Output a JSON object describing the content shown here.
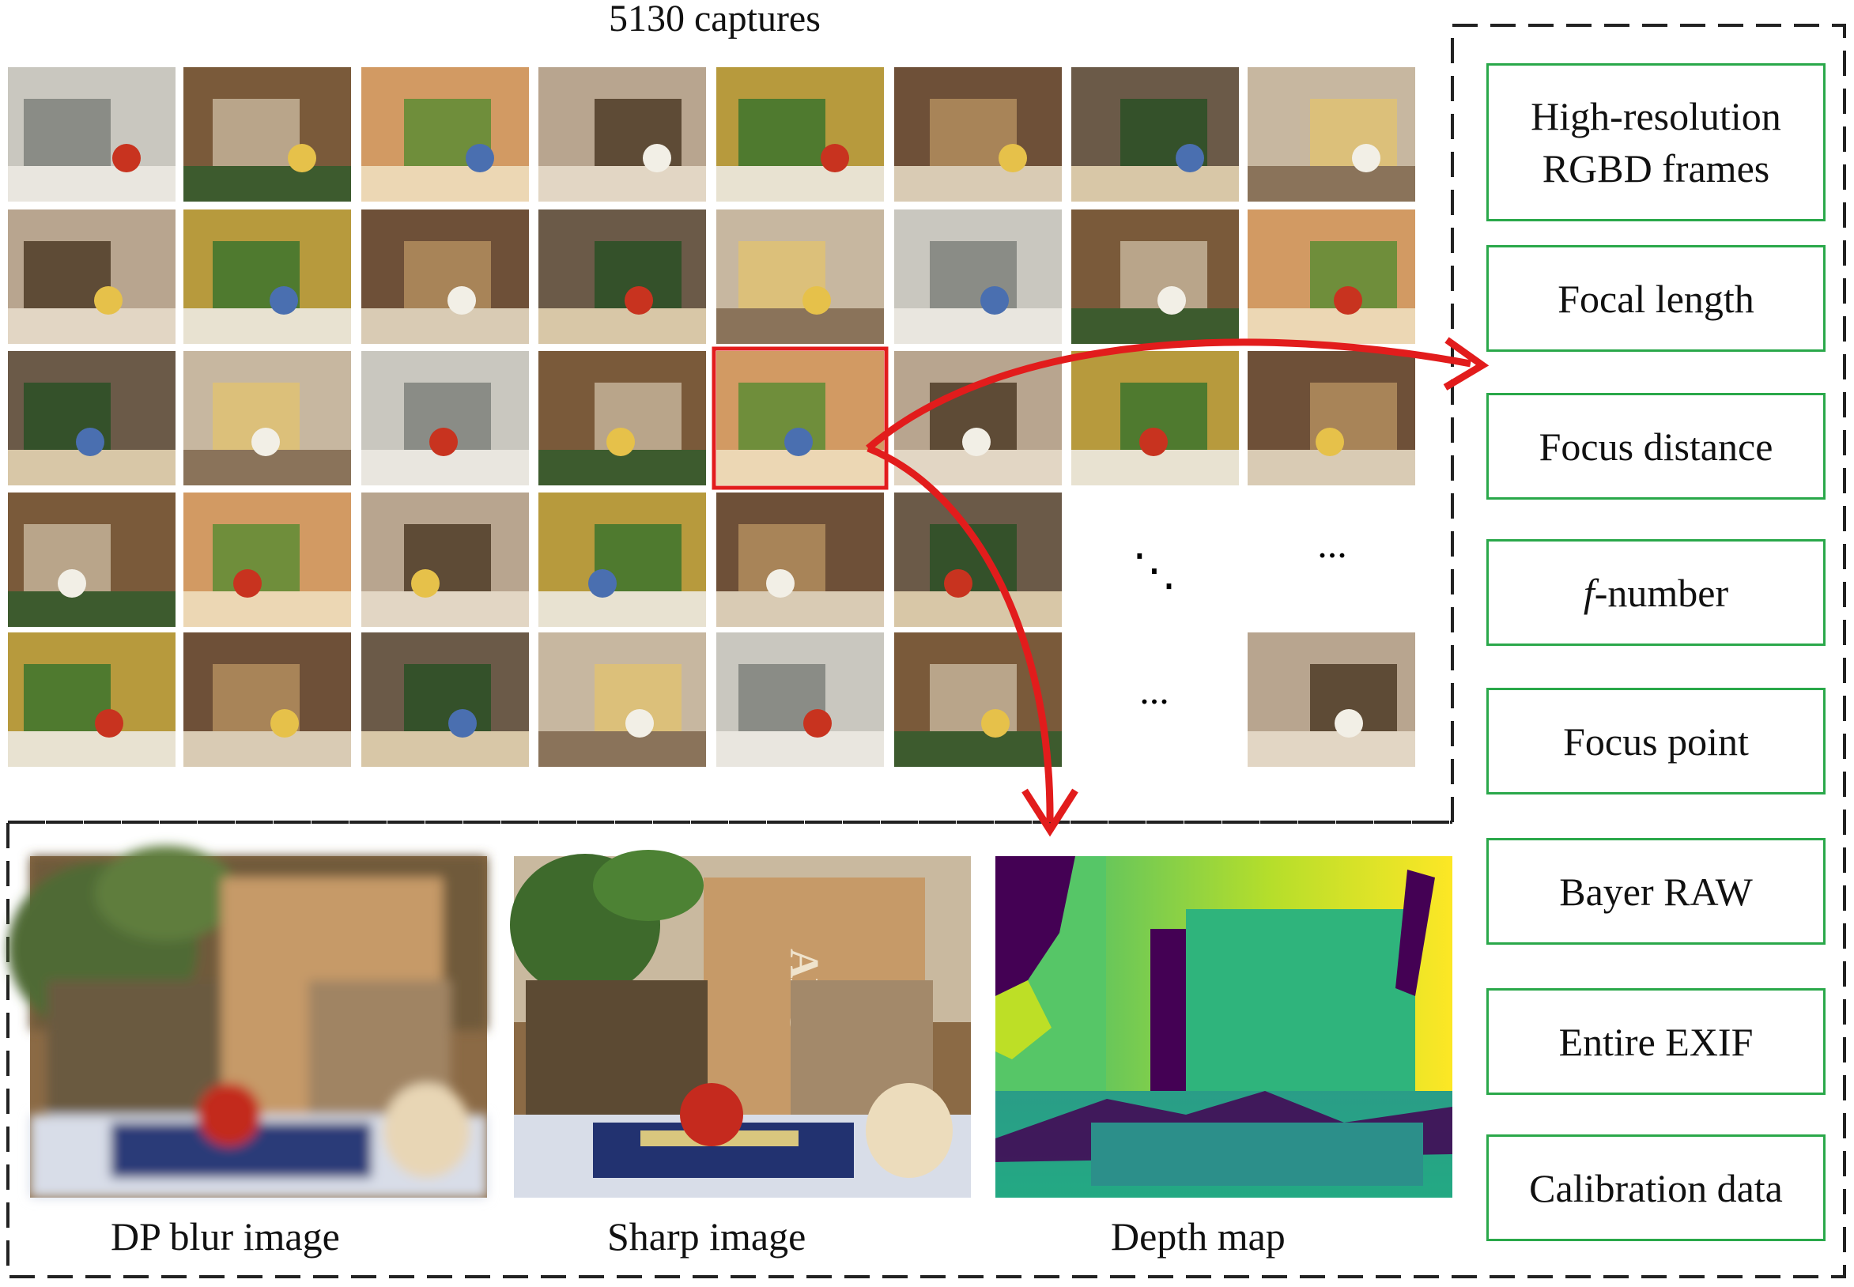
{
  "title": "5130 captures",
  "captures_grid": {
    "rows": 5,
    "cols": 8,
    "selected": {
      "row": 2,
      "col": 4
    },
    "ellipsis": "...",
    "diagonal_ellipsis": "⋱"
  },
  "properties": [
    {
      "id": "rgbd",
      "lines": [
        "High-resolution",
        "RGBD frames"
      ]
    },
    {
      "id": "focal-length",
      "lines": [
        "Focal length"
      ]
    },
    {
      "id": "focus-distance",
      "lines": [
        "Focus distance"
      ]
    },
    {
      "id": "f-number",
      "prefix": "f",
      "lines": [
        "-number"
      ]
    },
    {
      "id": "focus-point",
      "lines": [
        "Focus point"
      ]
    },
    {
      "id": "bayer-raw",
      "lines": [
        "Bayer RAW"
      ]
    },
    {
      "id": "entire-exif",
      "lines": [
        "Entire EXIF"
      ]
    },
    {
      "id": "calibration",
      "lines": [
        "Calibration data"
      ]
    }
  ],
  "outputs": [
    {
      "id": "dp-blur",
      "caption": "DP blur image"
    },
    {
      "id": "sharp",
      "caption": "Sharp image"
    },
    {
      "id": "depth",
      "caption": "Depth map"
    }
  ],
  "colors": {
    "highlight": "#e21c1c",
    "arrow": "#e21c1c",
    "property_border": "#2aa84a",
    "dashed_border": "#222222",
    "depth_low": "#440154",
    "depth_mid": "#21918c",
    "depth_high": "#fde725"
  }
}
